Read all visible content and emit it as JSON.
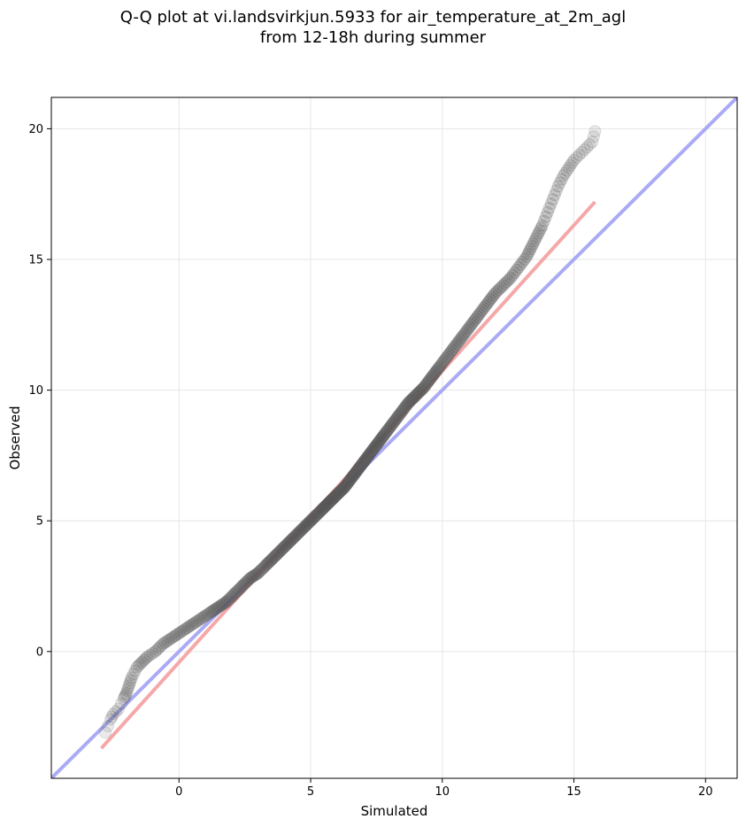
{
  "chart_data": {
    "type": "scatter",
    "title": "Q-Q plot at vi.landsvirkjun.5933 for air_temperature_at_2m_agl",
    "subtitle": "from 12-18h during summer",
    "xlabel": "Simulated",
    "ylabel": "Observed",
    "xlim": [
      -4.85,
      21.2
    ],
    "ylim": [
      -4.85,
      21.2
    ],
    "xticks": [
      0,
      5,
      10,
      15,
      20
    ],
    "yticks": [
      0,
      5,
      10,
      15,
      20
    ],
    "x_tick_labels": [
      "0",
      "5",
      "10",
      "15",
      "20"
    ],
    "y_tick_labels": [
      "0",
      "5",
      "10",
      "15",
      "20"
    ],
    "grid": true,
    "marker_color": "#555555",
    "identity_line_color": "#aaaaf5",
    "fit_line_color": "#f5a8a8",
    "identity_line": {
      "from": [
        -4.85,
        -4.85
      ],
      "to": [
        21.2,
        21.2
      ]
    },
    "fit_line": {
      "from": [
        -2.95,
        -3.7
      ],
      "to": [
        15.8,
        17.2
      ]
    },
    "series": [
      {
        "x": [
          -2.8,
          -2.6,
          -2.5,
          -2.3,
          -2.1,
          -2.0,
          -1.9,
          -1.8,
          -1.6,
          -1.4,
          -1.2,
          -0.9,
          -0.6,
          -0.3,
          0.0,
          0.3,
          0.6,
          0.9,
          1.2,
          1.5,
          1.8,
          2.1,
          2.4,
          2.7,
          3.0,
          3.3,
          3.6,
          3.9,
          4.2,
          4.5,
          4.8,
          5.1,
          5.4,
          5.7,
          6.0,
          6.3,
          6.6,
          6.9,
          7.2,
          7.5,
          7.8,
          8.1,
          8.4,
          8.7,
          9.0,
          9.3,
          9.6,
          9.9,
          10.2,
          10.5,
          10.8,
          11.1,
          11.4,
          11.7,
          12.0,
          12.3,
          12.6,
          12.9,
          13.2,
          13.4,
          13.6,
          13.8,
          14.0,
          14.2,
          14.4,
          14.6,
          14.8,
          15.0,
          15.3,
          15.5,
          15.7,
          15.8
        ],
        "y": [
          -3.1,
          -2.6,
          -2.4,
          -2.2,
          -1.8,
          -1.6,
          -1.3,
          -1.0,
          -0.6,
          -0.4,
          -0.2,
          0.0,
          0.3,
          0.5,
          0.7,
          0.9,
          1.1,
          1.3,
          1.5,
          1.7,
          1.9,
          2.2,
          2.5,
          2.8,
          3.0,
          3.3,
          3.6,
          3.9,
          4.2,
          4.5,
          4.8,
          5.1,
          5.4,
          5.7,
          6.0,
          6.3,
          6.7,
          7.1,
          7.5,
          7.9,
          8.3,
          8.7,
          9.1,
          9.5,
          9.8,
          10.1,
          10.5,
          10.9,
          11.3,
          11.7,
          12.1,
          12.5,
          12.9,
          13.3,
          13.7,
          14.0,
          14.3,
          14.7,
          15.1,
          15.5,
          15.9,
          16.3,
          16.8,
          17.3,
          17.8,
          18.2,
          18.5,
          18.8,
          19.1,
          19.3,
          19.5,
          19.9
        ]
      }
    ]
  }
}
